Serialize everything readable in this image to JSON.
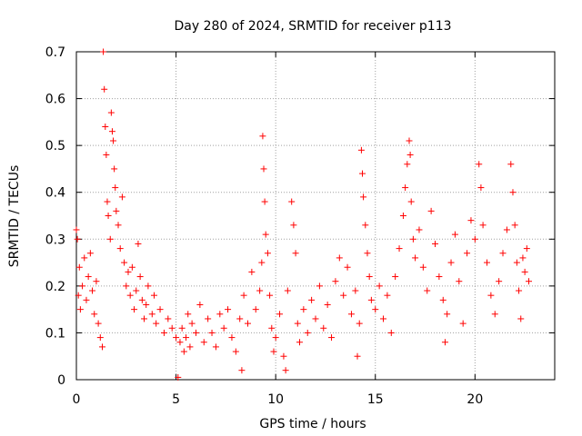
{
  "chart_data": {
    "type": "scatter",
    "title": "Day 280 of 2024, SRMTID for receiver p113",
    "xlabel": "GPS time / hours",
    "ylabel": "SRMTID / TECUs",
    "xlim": [
      0,
      24
    ],
    "ylim": [
      0,
      0.7
    ],
    "grid": true,
    "x_ticks": [
      0,
      5,
      10,
      15,
      20
    ],
    "x_tick_labels": [
      "0",
      "5",
      "10",
      "15",
      "20"
    ],
    "y_ticks": [
      0,
      0.1,
      0.2,
      0.3,
      0.4,
      0.5,
      0.6,
      0.7
    ],
    "y_tick_labels": [
      "0",
      "0.1",
      "0.2",
      "0.3",
      "0.4",
      "0.5",
      "0.6",
      "0.7"
    ],
    "marker": "+",
    "color": "#ff0000",
    "series": [
      {
        "name": "SRMTID",
        "points": [
          [
            0.0,
            0.32
          ],
          [
            0.05,
            0.3
          ],
          [
            0.1,
            0.18
          ],
          [
            0.15,
            0.24
          ],
          [
            0.2,
            0.15
          ],
          [
            0.3,
            0.2
          ],
          [
            0.4,
            0.26
          ],
          [
            0.5,
            0.17
          ],
          [
            0.6,
            0.22
          ],
          [
            0.7,
            0.27
          ],
          [
            0.8,
            0.19
          ],
          [
            0.9,
            0.14
          ],
          [
            1.0,
            0.21
          ],
          [
            1.1,
            0.12
          ],
          [
            1.2,
            0.09
          ],
          [
            1.3,
            0.07
          ],
          [
            1.35,
            0.7
          ],
          [
            1.4,
            0.62
          ],
          [
            1.45,
            0.54
          ],
          [
            1.5,
            0.48
          ],
          [
            1.55,
            0.38
          ],
          [
            1.6,
            0.35
          ],
          [
            1.7,
            0.3
          ],
          [
            1.75,
            0.57
          ],
          [
            1.8,
            0.53
          ],
          [
            1.85,
            0.51
          ],
          [
            1.9,
            0.45
          ],
          [
            1.95,
            0.41
          ],
          [
            2.0,
            0.36
          ],
          [
            2.1,
            0.33
          ],
          [
            2.2,
            0.28
          ],
          [
            2.3,
            0.39
          ],
          [
            2.4,
            0.25
          ],
          [
            2.5,
            0.2
          ],
          [
            2.6,
            0.23
          ],
          [
            2.7,
            0.18
          ],
          [
            2.8,
            0.24
          ],
          [
            2.9,
            0.15
          ],
          [
            3.0,
            0.19
          ],
          [
            3.1,
            0.29
          ],
          [
            3.2,
            0.22
          ],
          [
            3.3,
            0.17
          ],
          [
            3.4,
            0.13
          ],
          [
            3.5,
            0.16
          ],
          [
            3.6,
            0.2
          ],
          [
            3.8,
            0.14
          ],
          [
            3.9,
            0.18
          ],
          [
            4.0,
            0.12
          ],
          [
            4.2,
            0.15
          ],
          [
            4.4,
            0.1
          ],
          [
            4.6,
            0.13
          ],
          [
            4.8,
            0.11
          ],
          [
            5.0,
            0.09
          ],
          [
            5.1,
            0.005
          ],
          [
            5.2,
            0.08
          ],
          [
            5.3,
            0.11
          ],
          [
            5.4,
            0.06
          ],
          [
            5.5,
            0.09
          ],
          [
            5.6,
            0.14
          ],
          [
            5.7,
            0.07
          ],
          [
            5.8,
            0.12
          ],
          [
            6.0,
            0.1
          ],
          [
            6.2,
            0.16
          ],
          [
            6.4,
            0.08
          ],
          [
            6.6,
            0.13
          ],
          [
            6.8,
            0.1
          ],
          [
            7.0,
            0.07
          ],
          [
            7.2,
            0.14
          ],
          [
            7.4,
            0.11
          ],
          [
            7.6,
            0.15
          ],
          [
            7.8,
            0.09
          ],
          [
            8.0,
            0.06
          ],
          [
            8.2,
            0.13
          ],
          [
            8.3,
            0.02
          ],
          [
            8.4,
            0.18
          ],
          [
            8.6,
            0.12
          ],
          [
            8.8,
            0.23
          ],
          [
            9.0,
            0.15
          ],
          [
            9.2,
            0.19
          ],
          [
            9.3,
            0.25
          ],
          [
            9.35,
            0.52
          ],
          [
            9.4,
            0.45
          ],
          [
            9.45,
            0.38
          ],
          [
            9.5,
            0.31
          ],
          [
            9.6,
            0.27
          ],
          [
            9.7,
            0.18
          ],
          [
            9.8,
            0.11
          ],
          [
            9.9,
            0.06
          ],
          [
            10.0,
            0.09
          ],
          [
            10.2,
            0.14
          ],
          [
            10.4,
            0.05
          ],
          [
            10.5,
            0.02
          ],
          [
            10.6,
            0.19
          ],
          [
            10.8,
            0.38
          ],
          [
            10.9,
            0.33
          ],
          [
            11.0,
            0.27
          ],
          [
            11.1,
            0.12
          ],
          [
            11.2,
            0.08
          ],
          [
            11.4,
            0.15
          ],
          [
            11.6,
            0.1
          ],
          [
            11.8,
            0.17
          ],
          [
            12.0,
            0.13
          ],
          [
            12.2,
            0.2
          ],
          [
            12.4,
            0.11
          ],
          [
            12.6,
            0.16
          ],
          [
            12.8,
            0.09
          ],
          [
            13.0,
            0.21
          ],
          [
            13.2,
            0.26
          ],
          [
            13.4,
            0.18
          ],
          [
            13.6,
            0.24
          ],
          [
            13.8,
            0.14
          ],
          [
            14.0,
            0.19
          ],
          [
            14.1,
            0.05
          ],
          [
            14.2,
            0.12
          ],
          [
            14.3,
            0.49
          ],
          [
            14.35,
            0.44
          ],
          [
            14.4,
            0.39
          ],
          [
            14.5,
            0.33
          ],
          [
            14.6,
            0.27
          ],
          [
            14.7,
            0.22
          ],
          [
            14.8,
            0.17
          ],
          [
            15.0,
            0.15
          ],
          [
            15.2,
            0.2
          ],
          [
            15.4,
            0.13
          ],
          [
            15.6,
            0.18
          ],
          [
            15.8,
            0.1
          ],
          [
            16.0,
            0.22
          ],
          [
            16.2,
            0.28
          ],
          [
            16.4,
            0.35
          ],
          [
            16.5,
            0.41
          ],
          [
            16.6,
            0.46
          ],
          [
            16.7,
            0.51
          ],
          [
            16.75,
            0.48
          ],
          [
            16.8,
            0.38
          ],
          [
            16.9,
            0.3
          ],
          [
            17.0,
            0.26
          ],
          [
            17.2,
            0.32
          ],
          [
            17.4,
            0.24
          ],
          [
            17.6,
            0.19
          ],
          [
            17.8,
            0.36
          ],
          [
            18.0,
            0.29
          ],
          [
            18.2,
            0.22
          ],
          [
            18.4,
            0.17
          ],
          [
            18.5,
            0.08
          ],
          [
            18.6,
            0.14
          ],
          [
            18.8,
            0.25
          ],
          [
            19.0,
            0.31
          ],
          [
            19.2,
            0.21
          ],
          [
            19.4,
            0.12
          ],
          [
            19.6,
            0.27
          ],
          [
            19.8,
            0.34
          ],
          [
            20.0,
            0.3
          ],
          [
            20.2,
            0.46
          ],
          [
            20.3,
            0.41
          ],
          [
            20.4,
            0.33
          ],
          [
            20.6,
            0.25
          ],
          [
            20.8,
            0.18
          ],
          [
            21.0,
            0.14
          ],
          [
            21.2,
            0.21
          ],
          [
            21.4,
            0.27
          ],
          [
            21.6,
            0.32
          ],
          [
            21.8,
            0.46
          ],
          [
            21.9,
            0.4
          ],
          [
            22.0,
            0.33
          ],
          [
            22.1,
            0.25
          ],
          [
            22.2,
            0.19
          ],
          [
            22.3,
            0.13
          ],
          [
            22.4,
            0.26
          ],
          [
            22.5,
            0.23
          ],
          [
            22.6,
            0.28
          ],
          [
            22.7,
            0.21
          ]
        ]
      }
    ]
  }
}
